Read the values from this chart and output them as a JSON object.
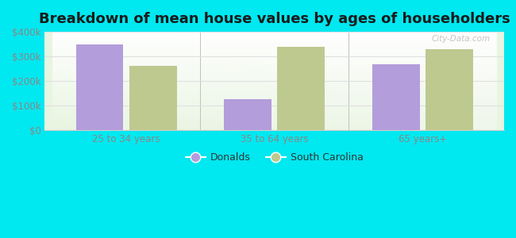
{
  "title": "Breakdown of mean house values by ages of householders",
  "categories": [
    "25 to 34 years",
    "35 to 64 years",
    "65 years+"
  ],
  "series": {
    "Donalds": [
      348000,
      128000,
      268000
    ],
    "South Carolina": [
      262000,
      340000,
      328000
    ]
  },
  "bar_colors": {
    "Donalds": "#b39ddb",
    "South Carolina": "#bec990"
  },
  "ylim": [
    0,
    400000
  ],
  "yticks": [
    0,
    100000,
    200000,
    300000,
    400000
  ],
  "ytick_labels": [
    "$0",
    "$100k",
    "$200k",
    "$300k",
    "$400k"
  ],
  "background_outer": "#00e8f0",
  "background_inner_top": "#ffffff",
  "background_inner_bottom": "#e8f5e0",
  "grid_color": "#e0e0e0",
  "title_fontsize": 13,
  "watermark": "City-Data.com",
  "tick_color": "#888888",
  "separator_color": "#c0c0c0"
}
